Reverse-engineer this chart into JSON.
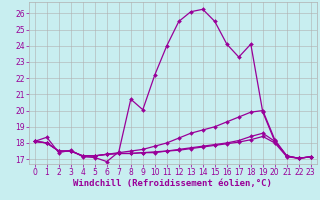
{
  "background_color": "#c8eef0",
  "grid_color": "#b0b0b0",
  "line_color": "#990099",
  "marker": "D",
  "markersize": 2,
  "linewidth": 0.9,
  "xlabel": "Windchill (Refroidissement éolien,°C)",
  "xlabel_fontsize": 6.5,
  "tick_fontsize": 5.5,
  "xlim": [
    -0.5,
    23.5
  ],
  "ylim": [
    16.7,
    26.7
  ],
  "yticks": [
    17,
    18,
    19,
    20,
    21,
    22,
    23,
    24,
    25,
    26
  ],
  "xticks": [
    0,
    1,
    2,
    3,
    4,
    5,
    6,
    7,
    8,
    9,
    10,
    11,
    12,
    13,
    14,
    15,
    16,
    17,
    18,
    19,
    20,
    21,
    22,
    23
  ],
  "series": [
    {
      "x": [
        0,
        1,
        2,
        3,
        4,
        5,
        6,
        7,
        8,
        9,
        10,
        11,
        12,
        13,
        14,
        15,
        16,
        17,
        18,
        19,
        20,
        21,
        22,
        23
      ],
      "y": [
        18.1,
        18.35,
        17.4,
        17.55,
        17.15,
        17.1,
        16.85,
        17.45,
        20.7,
        20.05,
        22.2,
        24.0,
        25.5,
        26.1,
        26.25,
        25.5,
        24.1,
        23.3,
        24.1,
        19.9,
        18.1,
        17.2,
        17.05,
        17.15
      ]
    },
    {
      "x": [
        0,
        1,
        2,
        3,
        4,
        5,
        6,
        7,
        8,
        9,
        10,
        11,
        12,
        13,
        14,
        15,
        16,
        17,
        18,
        19,
        20,
        21,
        22,
        23
      ],
      "y": [
        18.1,
        18.0,
        17.5,
        17.5,
        17.2,
        17.2,
        17.3,
        17.4,
        17.5,
        17.6,
        17.8,
        18.0,
        18.3,
        18.6,
        18.8,
        19.0,
        19.3,
        19.6,
        19.9,
        20.0,
        18.2,
        17.2,
        17.05,
        17.15
      ]
    },
    {
      "x": [
        0,
        1,
        2,
        3,
        4,
        5,
        6,
        7,
        8,
        9,
        10,
        11,
        12,
        13,
        14,
        15,
        16,
        17,
        18,
        19,
        20,
        21,
        22,
        23
      ],
      "y": [
        18.1,
        18.0,
        17.5,
        17.5,
        17.2,
        17.2,
        17.3,
        17.35,
        17.35,
        17.4,
        17.45,
        17.5,
        17.6,
        17.7,
        17.8,
        17.9,
        18.0,
        18.15,
        18.4,
        18.6,
        18.1,
        17.2,
        17.05,
        17.15
      ]
    },
    {
      "x": [
        0,
        1,
        2,
        3,
        4,
        5,
        6,
        7,
        8,
        9,
        10,
        11,
        12,
        13,
        14,
        15,
        16,
        17,
        18,
        19,
        20,
        21,
        22,
        23
      ],
      "y": [
        18.1,
        18.0,
        17.5,
        17.5,
        17.2,
        17.2,
        17.3,
        17.35,
        17.35,
        17.4,
        17.4,
        17.5,
        17.55,
        17.65,
        17.75,
        17.85,
        17.95,
        18.05,
        18.2,
        18.4,
        18.0,
        17.15,
        17.05,
        17.15
      ]
    }
  ]
}
